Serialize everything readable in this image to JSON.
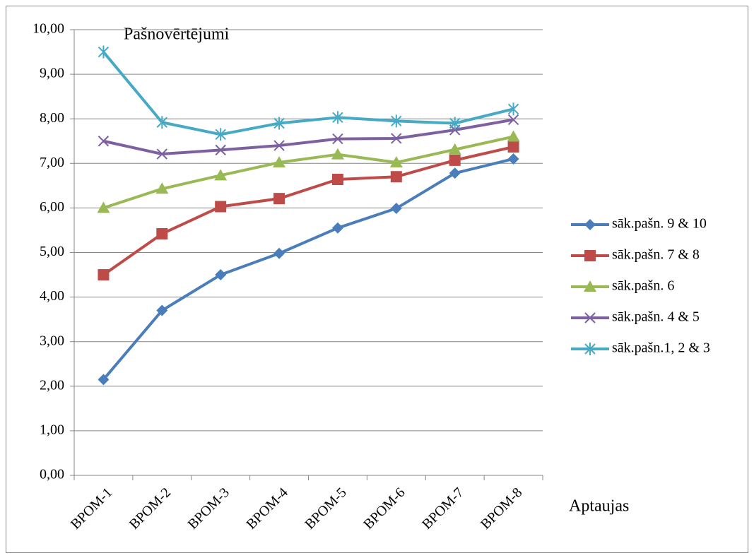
{
  "chart_data": {
    "type": "line",
    "title": "Pašnovērtējumi",
    "x_label": "Aptaujas",
    "categories": [
      "BPOM-1",
      "BPOM-2",
      "BPOM-3",
      "BPOM-4",
      "BPOM-5",
      "BPOM-6",
      "BPOM-7",
      "BPOM-8"
    ],
    "series": [
      {
        "name": "sāk.pašn. 9 & 10",
        "color": "#4a7ebb",
        "marker": "diamond",
        "values": [
          2.15,
          3.7,
          4.5,
          4.98,
          5.55,
          5.99,
          6.78,
          7.1
        ]
      },
      {
        "name": "sāk.pašn. 7 & 8",
        "color": "#be4b48",
        "marker": "square",
        "values": [
          4.5,
          5.42,
          6.03,
          6.21,
          6.64,
          6.7,
          7.07,
          7.37
        ]
      },
      {
        "name": "sāk.pašn. 6",
        "color": "#98b954",
        "marker": "triangle",
        "values": [
          6.0,
          6.43,
          6.73,
          7.02,
          7.2,
          7.02,
          7.31,
          7.6
        ]
      },
      {
        "name": "sāk.pašn. 4 & 5",
        "color": "#7d60a0",
        "marker": "x",
        "values": [
          7.5,
          7.21,
          7.3,
          7.4,
          7.55,
          7.56,
          7.75,
          7.98
        ]
      },
      {
        "name": "sāk.pašn.1, 2 & 3",
        "color": "#46aac5",
        "marker": "star",
        "values": [
          9.5,
          7.92,
          7.65,
          7.9,
          8.03,
          7.95,
          7.9,
          8.22
        ]
      }
    ],
    "ylim": [
      0,
      10
    ],
    "yticks": [
      {
        "value": 0,
        "label": "0,00"
      },
      {
        "value": 1,
        "label": "1,00"
      },
      {
        "value": 2,
        "label": "2,00"
      },
      {
        "value": 3,
        "label": "3,00"
      },
      {
        "value": 4,
        "label": "4,00"
      },
      {
        "value": 5,
        "label": "5,00"
      },
      {
        "value": 6,
        "label": "6,00"
      },
      {
        "value": 7,
        "label": "7,00"
      },
      {
        "value": 8,
        "label": "8,00"
      },
      {
        "value": 9,
        "label": "9,00"
      },
      {
        "value": 10,
        "label": "10,00"
      }
    ],
    "grid": true,
    "legend": "right"
  }
}
